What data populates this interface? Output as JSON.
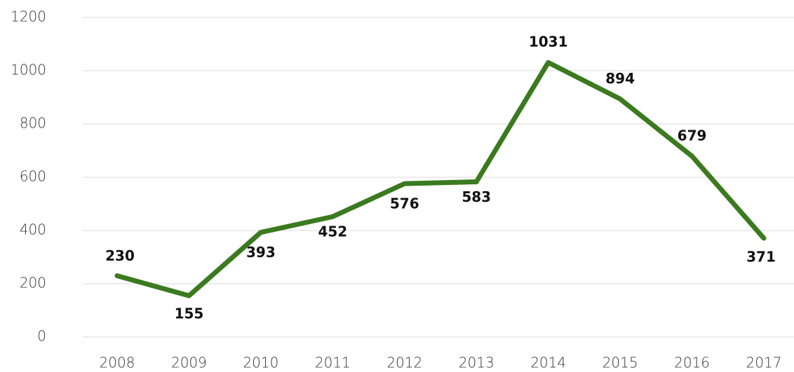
{
  "chart_data": {
    "type": "line",
    "categories": [
      "2008",
      "2009",
      "2010",
      "2011",
      "2012",
      "2013",
      "2014",
      "2015",
      "2016",
      "2017"
    ],
    "values": [
      230,
      155,
      393,
      452,
      576,
      583,
      1031,
      894,
      679,
      371
    ],
    "color": "#3b7a1f",
    "ylim": [
      0,
      1200
    ],
    "yticks": [
      0,
      200,
      400,
      600,
      800,
      1000,
      1200
    ],
    "grid": true
  }
}
